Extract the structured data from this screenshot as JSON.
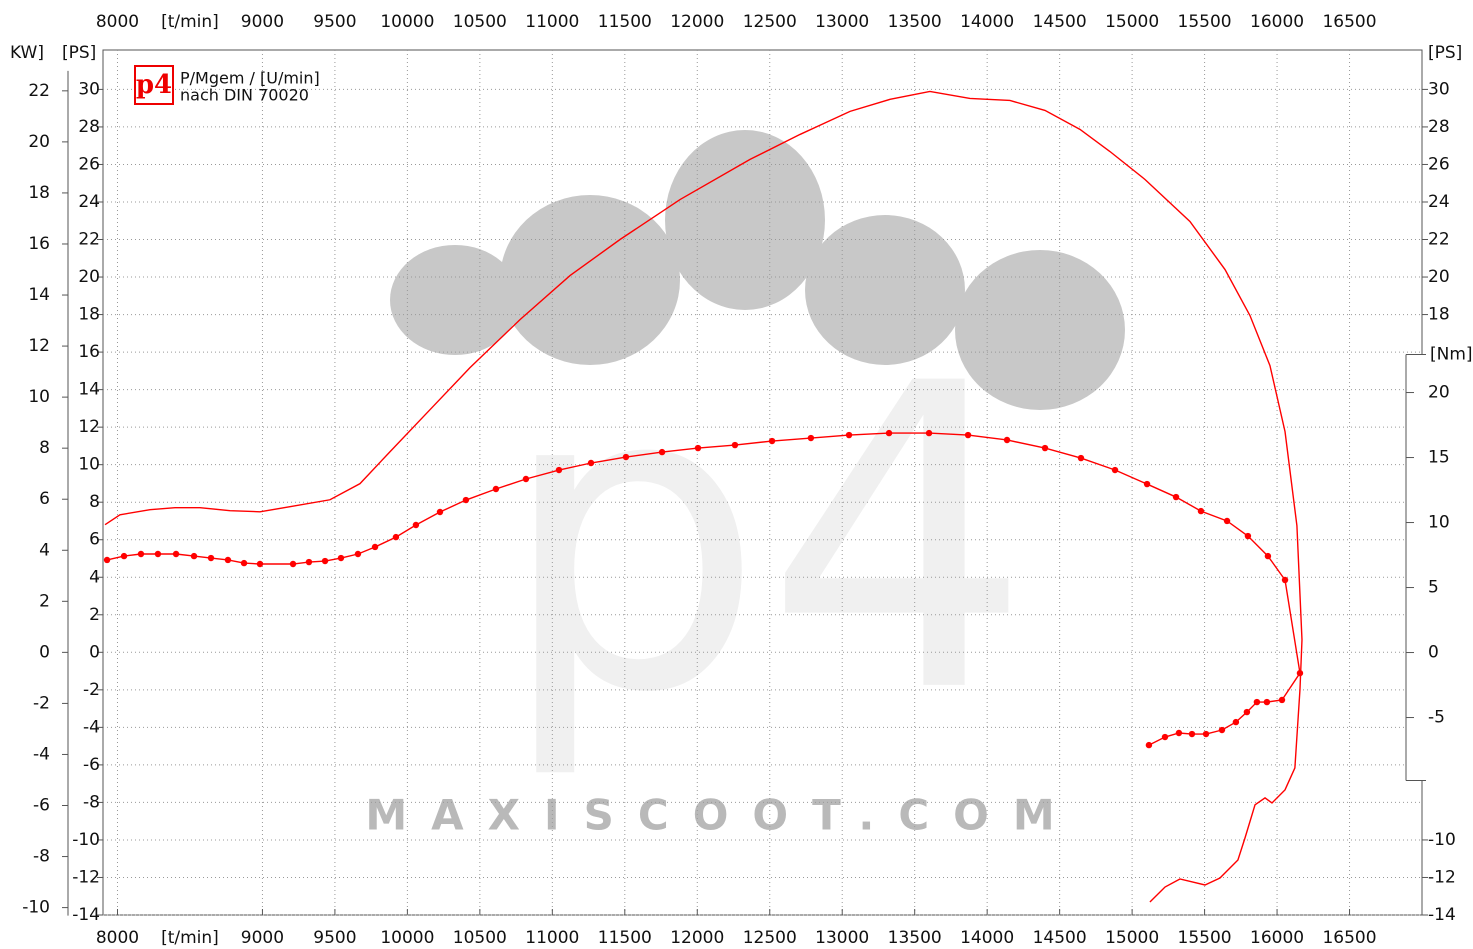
{
  "chart_data": {
    "type": "line",
    "logo": "p4",
    "legend_text": [
      "P/Mgem / [U/min]",
      "nach DIN 70020"
    ],
    "watermark": "MAXISCOOT.COM",
    "x_unit": "[t/min]",
    "kw_label": "KW]",
    "ps_label": "[PS]",
    "nm_label": "[Nm]",
    "grid": true,
    "xlim": [
      7900,
      17000
    ],
    "xticks": [
      8000,
      9000,
      9500,
      10000,
      10500,
      11000,
      11500,
      12000,
      12500,
      13000,
      13500,
      14000,
      14500,
      15000,
      15500,
      16000,
      16500
    ],
    "ylim": [
      -14,
      32.1
    ],
    "yticks": [
      -14,
      -12,
      -10,
      -8,
      -6,
      -4,
      -2,
      0,
      2,
      4,
      6,
      8,
      10,
      12,
      14,
      16,
      18,
      20,
      22,
      24,
      26,
      28,
      30
    ],
    "kwlim": [
      -10.29,
      23.6
    ],
    "kwticks": [
      -10,
      -8,
      -6,
      -4,
      -2,
      0,
      2,
      4,
      6,
      8,
      10,
      12,
      14,
      16,
      18,
      20,
      22
    ],
    "right_psticks": [
      -14,
      -12,
      -10,
      18,
      20,
      22,
      24,
      26,
      28,
      30
    ],
    "y2lim": [
      -20.19,
      46.35
    ],
    "y2ticks": [
      -5,
      0,
      5,
      10,
      15,
      20
    ],
    "series": [
      {
        "color": "#ff0000",
        "marker": false,
        "x": [
          7914,
          8017,
          8224,
          8397,
          8569,
          8776,
          8983,
          9190,
          9466,
          9673,
          9880,
          10156,
          10432,
          10777,
          11122,
          11467,
          11881,
          12364,
          12709,
          13054,
          13330,
          13605,
          13881,
          14157,
          14399,
          14640,
          14847,
          15089,
          15399,
          15641,
          15813,
          15951,
          16055,
          16137,
          16172,
          16158,
          16123,
          16055,
          15965,
          15917,
          15848,
          15779,
          15730,
          15606,
          15503,
          15330,
          15227,
          15123
        ],
        "values": [
          6.8,
          7.33,
          7.6,
          7.71,
          7.71,
          7.55,
          7.49,
          7.76,
          8.13,
          8.99,
          10.69,
          12.93,
          15.17,
          17.73,
          20.08,
          22.0,
          24.13,
          26.27,
          27.6,
          28.83,
          29.47,
          29.89,
          29.52,
          29.41,
          28.88,
          27.87,
          26.69,
          25.2,
          22.96,
          20.4,
          17.95,
          15.28,
          11.76,
          6.75,
          0.67,
          -2.0,
          -6.16,
          -7.33,
          -8.03,
          -7.76,
          -8.13,
          -9.89,
          -11.07,
          -12.03,
          -12.4,
          -12.08,
          -12.51,
          -13.31
        ]
      },
      {
        "color": "#ff0000",
        "marker": true,
        "axis": "y2",
        "x": [
          7928,
          8045,
          8162,
          8279,
          8404,
          8528,
          8645,
          8762,
          8873,
          8983,
          9211,
          9321,
          9432,
          9542,
          9659,
          9777,
          9921,
          10059,
          10225,
          10404,
          10611,
          10818,
          11046,
          11267,
          11508,
          11757,
          12005,
          12260,
          12516,
          12784,
          13047,
          13323,
          13599,
          13868,
          14137,
          14399,
          14647,
          14882,
          15103,
          15303,
          15475,
          15655,
          15799,
          15937,
          16055,
          16158,
          16034,
          15930,
          15861,
          15792,
          15716,
          15620,
          15510,
          15413,
          15323,
          15227,
          15116
        ],
        "values": [
          7.12,
          7.42,
          7.58,
          7.58,
          7.58,
          7.42,
          7.27,
          7.12,
          6.88,
          6.81,
          6.81,
          6.96,
          7.04,
          7.27,
          7.58,
          8.12,
          8.88,
          9.81,
          10.81,
          11.73,
          12.58,
          13.35,
          14.04,
          14.58,
          15.04,
          15.42,
          15.73,
          15.96,
          16.27,
          16.5,
          16.73,
          16.88,
          16.88,
          16.73,
          16.35,
          15.73,
          14.96,
          14.04,
          12.96,
          11.96,
          10.88,
          10.12,
          8.96,
          7.42,
          5.58,
          -1.58,
          -3.65,
          -3.81,
          -3.81,
          -4.58,
          -5.35,
          -5.96,
          -6.27,
          -6.27,
          -6.19,
          -6.5,
          -7.12
        ]
      }
    ]
  }
}
